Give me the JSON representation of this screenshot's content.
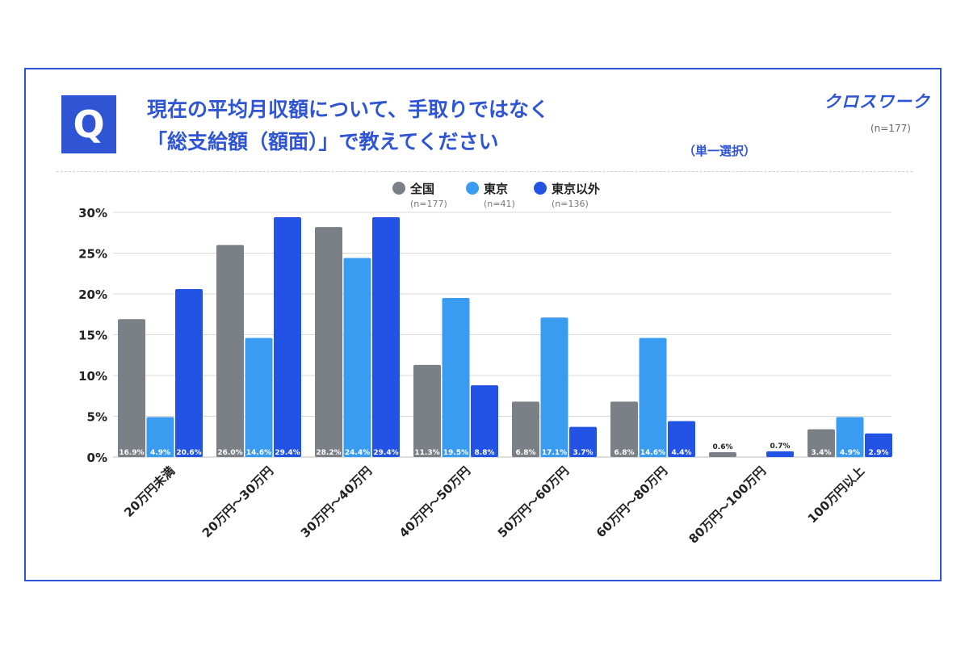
{
  "header": {
    "q_label": "Q",
    "title_line1": "現在の平均月収額について、手取りではなく",
    "title_line2": "「総支給額（額面）」で教えてください",
    "subtitle": "（単一選択）",
    "brand": "クロスワーク",
    "sample_size": "(n=177)"
  },
  "colors": {
    "accent": "#2f55d4",
    "series": [
      "#7b7f86",
      "#3a9cf0",
      "#2253e4"
    ]
  },
  "chart_data": {
    "type": "bar",
    "categories": [
      "20万円未満",
      "20万円～30万円",
      "30万円～40万円",
      "40万円～50万円",
      "50万円～60万円",
      "60万円～80万円",
      "80万円～100万円",
      "100万円以上"
    ],
    "series": [
      {
        "name": "全国",
        "n": "(n=177)",
        "values": [
          16.9,
          26.0,
          28.2,
          11.3,
          6.8,
          6.8,
          0.6,
          3.4
        ]
      },
      {
        "name": "東京",
        "n": "(n=41)",
        "values": [
          4.9,
          14.6,
          24.4,
          19.5,
          17.1,
          14.6,
          0.0,
          4.9
        ]
      },
      {
        "name": "東京以外",
        "n": "(n=136)",
        "values": [
          20.6,
          29.4,
          29.4,
          8.8,
          3.7,
          4.4,
          0.7,
          2.9
        ]
      }
    ],
    "y_ticks": [
      "0%",
      "5%",
      "10%",
      "15%",
      "20%",
      "25%",
      "30%"
    ],
    "ylim": [
      0,
      30
    ],
    "grid": true,
    "legend": "top-center",
    "xlabel": "",
    "ylabel": ""
  }
}
